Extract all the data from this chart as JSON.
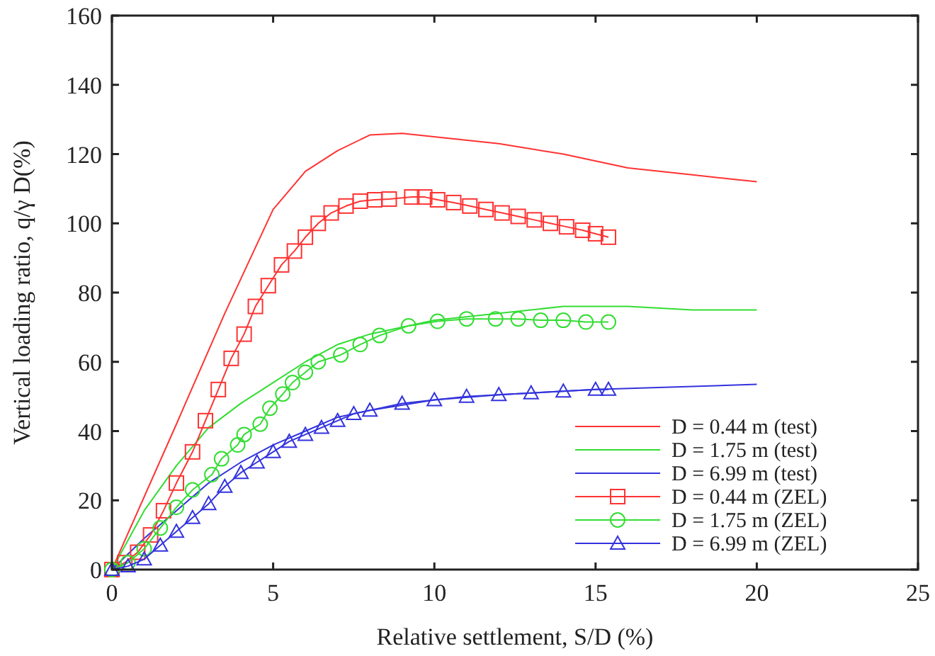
{
  "chart_data": {
    "type": "line",
    "xlabel": "Relative settlement, S/D (%)",
    "ylabel": "Vertical loading ratio, q/γ D(%)",
    "xlim": [
      0,
      25
    ],
    "xticks": [
      0,
      5,
      10,
      15,
      20,
      25
    ],
    "ylim": [
      0,
      160
    ],
    "yticks": [
      0,
      20,
      40,
      60,
      80,
      100,
      120,
      140,
      160
    ],
    "grid": false,
    "legend": "bottom right",
    "series": [
      {
        "name": "D = 0.44 m (test)",
        "color": "#ff3333",
        "marker": "none",
        "x": [
          0,
          2,
          3.5,
          5,
          6,
          7,
          8,
          9,
          12,
          14,
          15,
          16,
          18,
          20
        ],
        "values": [
          0,
          42,
          74,
          104,
          115,
          121,
          125.5,
          126,
          123,
          120,
          118,
          116,
          114,
          112
        ]
      },
      {
        "name": "D = 1.75 m (test)",
        "color": "#33dd33",
        "marker": "none",
        "x": [
          0,
          1,
          2,
          3,
          4,
          5,
          6,
          7,
          8,
          10,
          12,
          14,
          16,
          18,
          20
        ],
        "values": [
          0,
          17,
          30,
          41,
          48,
          54,
          60,
          65,
          68,
          72,
          74,
          76,
          76,
          75,
          75
        ]
      },
      {
        "name": "D = 6.99 m (test)",
        "color": "#3333dd",
        "marker": "none",
        "x": [
          0,
          1,
          2,
          3,
          4,
          5,
          6,
          7,
          8,
          10,
          12,
          15,
          20
        ],
        "values": [
          0,
          9,
          17,
          25,
          31,
          36,
          40,
          44,
          46,
          49,
          50.5,
          52,
          53.5
        ]
      },
      {
        "name": "D = 0.44 m (ZEL)",
        "color": "#ff3333",
        "marker": "square",
        "x": [
          0,
          0.4,
          0.8,
          1.2,
          1.6,
          2,
          2.5,
          2.9,
          3.3,
          3.7,
          4.1,
          4.45,
          4.85,
          5.26,
          5.66,
          6,
          6.4,
          6.8,
          7.26,
          7.7,
          8.15,
          8.6,
          9.3,
          9.7,
          10.1,
          10.6,
          11.1,
          11.6,
          12.1,
          12.6,
          13.1,
          13.6,
          14.1,
          14.6,
          15,
          15.4
        ],
        "values": [
          0,
          2,
          5,
          10,
          17,
          25,
          34,
          43,
          52,
          61,
          68,
          76,
          82,
          88,
          92,
          96,
          100,
          103,
          105,
          106.4,
          106.8,
          107,
          107.6,
          107.6,
          106.8,
          106,
          105,
          104,
          103,
          102,
          101,
          100,
          99,
          98,
          97,
          96
        ]
      },
      {
        "name": "D = 1.75 m (ZEL)",
        "color": "#33dd33",
        "marker": "circle",
        "x": [
          0,
          0.5,
          1,
          1.5,
          2,
          2.5,
          3.1,
          3.4,
          3.9,
          4.1,
          4.6,
          4.9,
          5.3,
          5.6,
          6,
          6.4,
          7.1,
          7.7,
          8.3,
          9.2,
          10.1,
          11,
          11.9,
          12.6,
          13.3,
          14,
          14.7,
          15.4
        ],
        "values": [
          0,
          2,
          6,
          12,
          18,
          23,
          27.4,
          32,
          36,
          39,
          42,
          46.6,
          50.7,
          54,
          57,
          60,
          62,
          65,
          67.6,
          70.4,
          71.7,
          72.4,
          72.4,
          72.4,
          72,
          72,
          71.5,
          71.5
        ]
      },
      {
        "name": "D = 6.99 m (ZEL)",
        "color": "#3333dd",
        "marker": "triangle",
        "x": [
          0,
          0.5,
          1,
          1.5,
          2,
          2.5,
          3,
          3.5,
          4,
          4.5,
          5,
          5.5,
          6,
          6.5,
          7,
          7.5,
          8,
          9,
          10,
          11,
          12,
          13,
          14,
          15,
          15.4
        ],
        "values": [
          0,
          1,
          3,
          7,
          11,
          15,
          19,
          24,
          28,
          31,
          34,
          37,
          39,
          41,
          43,
          45,
          46,
          48,
          49,
          50,
          50.5,
          51,
          51.5,
          52,
          52
        ]
      }
    ]
  }
}
